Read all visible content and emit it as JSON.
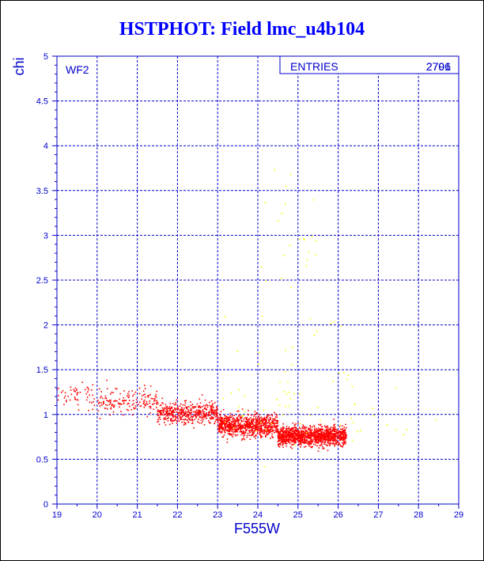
{
  "title": "HSTPHOT: Field lmc_u4b104",
  "chart_data": {
    "type": "scatter",
    "xlabel": "F555W",
    "ylabel": "chi",
    "xlim": [
      19,
      29
    ],
    "ylim": [
      0,
      5
    ],
    "xticks": [
      "19",
      "20",
      "21",
      "22",
      "23",
      "24",
      "25",
      "26",
      "27",
      "28",
      "29"
    ],
    "yticks": [
      "0",
      "0.5",
      "1",
      "1.5",
      "2",
      "2.5",
      "3",
      "3.5",
      "4",
      "4.5",
      "5"
    ],
    "grid": true,
    "panel_label": "WF2",
    "stats_box": {
      "label": "ENTRIES",
      "values": [
        "2796",
        "2701"
      ]
    },
    "colors": {
      "axis": "#0000cc",
      "grid": "#0000cc",
      "main": "#ff0000",
      "secondary": "#ffff00"
    },
    "series": [
      {
        "color": "#ff0000",
        "count": 2701,
        "clusters": [
          {
            "x_range": [
              19.0,
              20.0
            ],
            "y_center": 1.2,
            "y_spread": 0.12,
            "share": 0.02
          },
          {
            "x_range": [
              20.0,
              21.5
            ],
            "y_center": 1.15,
            "y_spread": 0.12,
            "share": 0.06
          },
          {
            "x_range": [
              21.5,
              23.0
            ],
            "y_center": 1.02,
            "y_spread": 0.1,
            "share": 0.17
          },
          {
            "x_range": [
              23.0,
              24.5
            ],
            "y_center": 0.88,
            "y_spread": 0.1,
            "share": 0.3
          },
          {
            "x_range": [
              24.5,
              26.2
            ],
            "y_center": 0.76,
            "y_spread": 0.09,
            "share": 0.45
          }
        ]
      },
      {
        "color": "#ffff00",
        "count": 95,
        "clusters": [
          {
            "x_range": [
              23.0,
              26.5
            ],
            "y_center": 1.4,
            "y_spread": 0.6,
            "share": 0.6
          },
          {
            "x_range": [
              24.0,
              25.5
            ],
            "y_center": 3.0,
            "y_spread": 0.8,
            "share": 0.25
          },
          {
            "x_range": [
              26.0,
              28.5
            ],
            "y_center": 1.0,
            "y_spread": 0.3,
            "share": 0.15
          }
        ]
      }
    ]
  }
}
